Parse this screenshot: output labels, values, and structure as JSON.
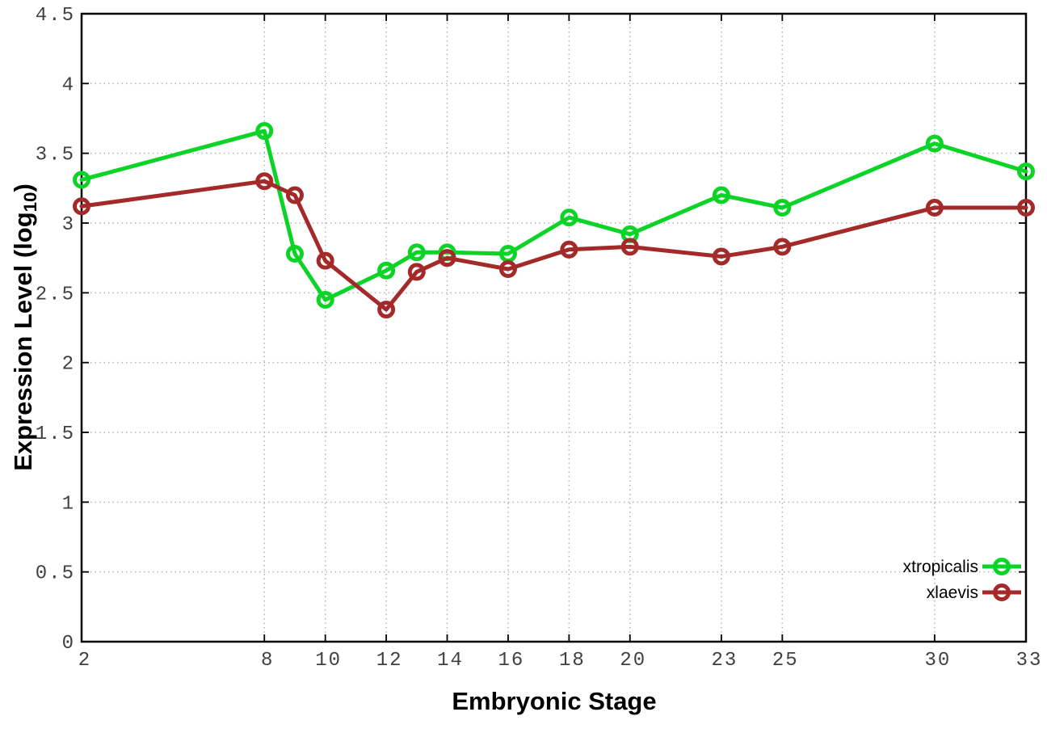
{
  "chart_data": {
    "type": "line",
    "title": "",
    "xlabel": "Embryonic Stage",
    "ylabel": "Expression Level (log10)",
    "ylabel_parts": {
      "prefix": "Expression Level (log",
      "sub": "10",
      "suffix": ")"
    },
    "x": [
      2,
      8,
      9,
      10,
      12,
      13,
      14,
      16,
      18,
      20,
      23,
      25,
      30,
      33
    ],
    "series": [
      {
        "name": "xtropicalis",
        "color": "#0bd427",
        "values": [
          3.31,
          3.66,
          2.78,
          2.45,
          2.66,
          2.79,
          2.79,
          2.78,
          3.04,
          2.92,
          3.2,
          3.11,
          3.57,
          3.37
        ]
      },
      {
        "name": "xlaevis",
        "color": "#a42a2a",
        "values": [
          3.12,
          3.3,
          3.2,
          2.73,
          2.38,
          2.65,
          2.75,
          2.67,
          2.81,
          2.83,
          2.76,
          2.83,
          3.11,
          3.11
        ]
      }
    ],
    "xticks": [
      2,
      8,
      10,
      12,
      14,
      16,
      18,
      20,
      23,
      25,
      30,
      33
    ],
    "yticks": [
      0,
      0.5,
      1,
      1.5,
      2,
      2.5,
      3,
      3.5,
      4,
      4.5
    ],
    "xlim": [
      2,
      33
    ],
    "ylim": [
      0,
      4.5
    ],
    "grid": true,
    "legend_position": "bottom-right",
    "marker": "open-circle",
    "axis_color": "#000000",
    "grid_color": "#b3b3b3",
    "tick_text_color": "#404040"
  }
}
